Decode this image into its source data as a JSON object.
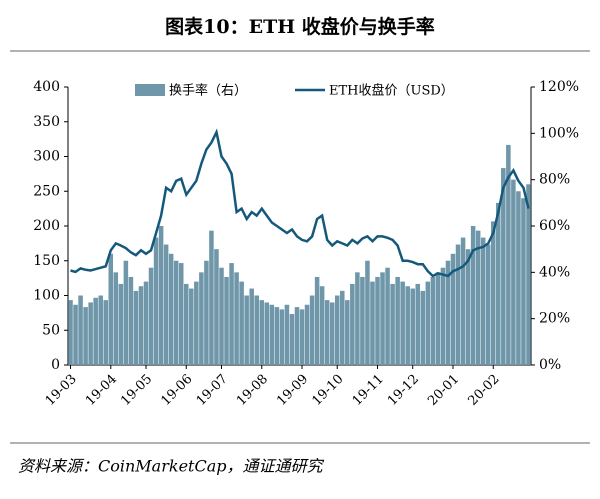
{
  "chart_data": {
    "type": "combo",
    "title": "图表10：ETH 收盘价与换手率",
    "source": "资料来源：CoinMarketCap，通证通研究",
    "categories": [
      "19-03",
      null,
      null,
      null,
      null,
      null,
      null,
      null,
      "19-04",
      null,
      null,
      null,
      null,
      null,
      null,
      "19-05",
      null,
      null,
      null,
      null,
      null,
      null,
      null,
      "19-06",
      null,
      null,
      null,
      null,
      null,
      null,
      "19-07",
      null,
      null,
      null,
      null,
      null,
      null,
      null,
      "19-08",
      null,
      null,
      null,
      null,
      null,
      null,
      null,
      "19-09",
      null,
      null,
      null,
      null,
      null,
      null,
      "19-10",
      null,
      null,
      null,
      null,
      null,
      null,
      null,
      "19-11",
      null,
      null,
      null,
      null,
      null,
      null,
      "19-12",
      null,
      null,
      null,
      null,
      null,
      null,
      null,
      "20-01",
      null,
      null,
      null,
      null,
      null,
      null,
      null,
      "20-02",
      null,
      null,
      null,
      null,
      null,
      null,
      null
    ],
    "series": [
      {
        "name": "换手率（右）",
        "type": "bar",
        "axis": "y2",
        "color": "#6f97a9",
        "values": [
          28,
          26,
          30,
          25,
          27,
          29,
          30,
          28,
          48,
          40,
          35,
          45,
          38,
          32,
          34,
          36,
          42,
          55,
          60,
          52,
          48,
          45,
          44,
          35,
          33,
          36,
          40,
          45,
          58,
          50,
          42,
          38,
          44,
          40,
          36,
          30,
          33,
          30,
          28,
          27,
          26,
          25,
          24,
          26,
          22,
          25,
          24,
          26,
          30,
          38,
          34,
          28,
          27,
          30,
          32,
          28,
          35,
          40,
          38,
          45,
          36,
          38,
          40,
          42,
          35,
          38,
          36,
          34,
          33,
          35,
          32,
          36,
          38,
          40,
          42,
          45,
          48,
          52,
          55,
          50,
          60,
          58,
          55,
          52,
          62,
          70,
          85,
          95,
          80,
          75,
          72,
          78
        ]
      },
      {
        "name": "ETH收盘价（USD）",
        "type": "line",
        "color": "#14597c",
        "values": [
          136,
          134,
          139,
          137,
          136,
          138,
          140,
          142,
          165,
          175,
          172,
          168,
          162,
          158,
          165,
          160,
          165,
          190,
          215,
          255,
          250,
          265,
          268,
          245,
          255,
          265,
          290,
          310,
          320,
          335,
          300,
          290,
          275,
          220,
          225,
          210,
          220,
          215,
          225,
          215,
          205,
          200,
          195,
          190,
          195,
          185,
          180,
          178,
          185,
          210,
          215,
          180,
          172,
          178,
          175,
          172,
          180,
          175,
          182,
          185,
          178,
          185,
          185,
          183,
          180,
          172,
          150,
          150,
          148,
          145,
          145,
          135,
          128,
          132,
          130,
          128,
          135,
          138,
          142,
          150,
          165,
          168,
          170,
          175,
          190,
          220,
          255,
          270,
          280,
          265,
          255,
          225
        ]
      }
    ],
    "ylim": [
      0,
      400
    ],
    "yticks": [
      0,
      50,
      100,
      150,
      200,
      250,
      300,
      350,
      400
    ],
    "y2lim": [
      0,
      120
    ],
    "y2ticks": [
      {
        "value": 0,
        "label": "0%"
      },
      {
        "value": 20,
        "label": "20%"
      },
      {
        "value": 40,
        "label": "40%"
      },
      {
        "value": 60,
        "label": "60%"
      },
      {
        "value": 80,
        "label": "80%"
      },
      {
        "value": 100,
        "label": "100%"
      },
      {
        "value": 120,
        "label": "120%"
      }
    ],
    "legend": "top"
  }
}
